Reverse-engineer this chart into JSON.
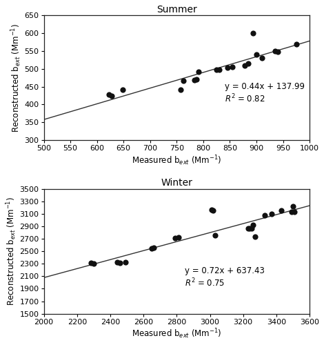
{
  "summer": {
    "title": "Summer",
    "x": [
      622,
      628,
      648,
      757,
      762,
      783,
      787,
      791,
      825,
      830,
      845,
      855,
      878,
      885,
      893,
      900,
      910,
      935,
      940,
      975
    ],
    "y": [
      428,
      425,
      442,
      442,
      467,
      468,
      471,
      491,
      497,
      497,
      503,
      505,
      510,
      515,
      600,
      540,
      530,
      550,
      548,
      570
    ],
    "slope": 0.44,
    "intercept": 137.99,
    "r2": 0.82,
    "xlim": [
      500,
      1000
    ],
    "ylim": [
      300,
      650
    ],
    "xticks": [
      500,
      550,
      600,
      650,
      700,
      750,
      800,
      850,
      900,
      950,
      1000
    ],
    "yticks": [
      300,
      350,
      400,
      450,
      500,
      550,
      600,
      650
    ],
    "xlabel": "Measured b$_{ext}$ (Mm$^{-1}$)",
    "ylabel": "Reconstructed b$_{ext}$ (Mm$^{-1}$)",
    "eq_text": "y = 0.44x + 137.99\n$R^2$ = 0.82",
    "eq_x": 840,
    "eq_y": 400
  },
  "winter": {
    "title": "Winter",
    "x": [
      2285,
      2300,
      2440,
      2460,
      2490,
      2650,
      2660,
      2790,
      2810,
      3010,
      3020,
      3030,
      3230,
      3240,
      3250,
      3260,
      3270,
      3330,
      3370,
      3430,
      3490,
      3500,
      3510
    ],
    "y": [
      2310,
      2300,
      2320,
      2315,
      2320,
      2540,
      2555,
      2710,
      2720,
      3160,
      3150,
      2760,
      2860,
      2870,
      2870,
      2920,
      2730,
      3080,
      3100,
      3150,
      3130,
      3220,
      3130
    ],
    "slope": 0.72,
    "intercept": 637.43,
    "r2": 0.75,
    "xlim": [
      2000,
      3600
    ],
    "ylim": [
      1500,
      3500
    ],
    "xticks": [
      2000,
      2200,
      2400,
      2600,
      2800,
      3000,
      3200,
      3400,
      3600
    ],
    "yticks": [
      1500,
      1700,
      1900,
      2100,
      2300,
      2500,
      2700,
      2900,
      3100,
      3300,
      3500
    ],
    "xlabel": "Measured b$_{ext}$ (Mm$^{-1}$)",
    "ylabel": "Reconstructed b$_{ext}$ (Mm$^{-1}$)",
    "eq_text": "y = 0.72x + 637.43\n$R^2$ = 0.75",
    "eq_x": 2850,
    "eq_y": 1900
  },
  "dot_color": "#111111",
  "line_color": "#333333",
  "bg_color": "#ffffff",
  "dot_size": 35,
  "title_fontsize": 10,
  "label_fontsize": 8.5,
  "tick_fontsize": 8,
  "eq_fontsize": 8.5
}
